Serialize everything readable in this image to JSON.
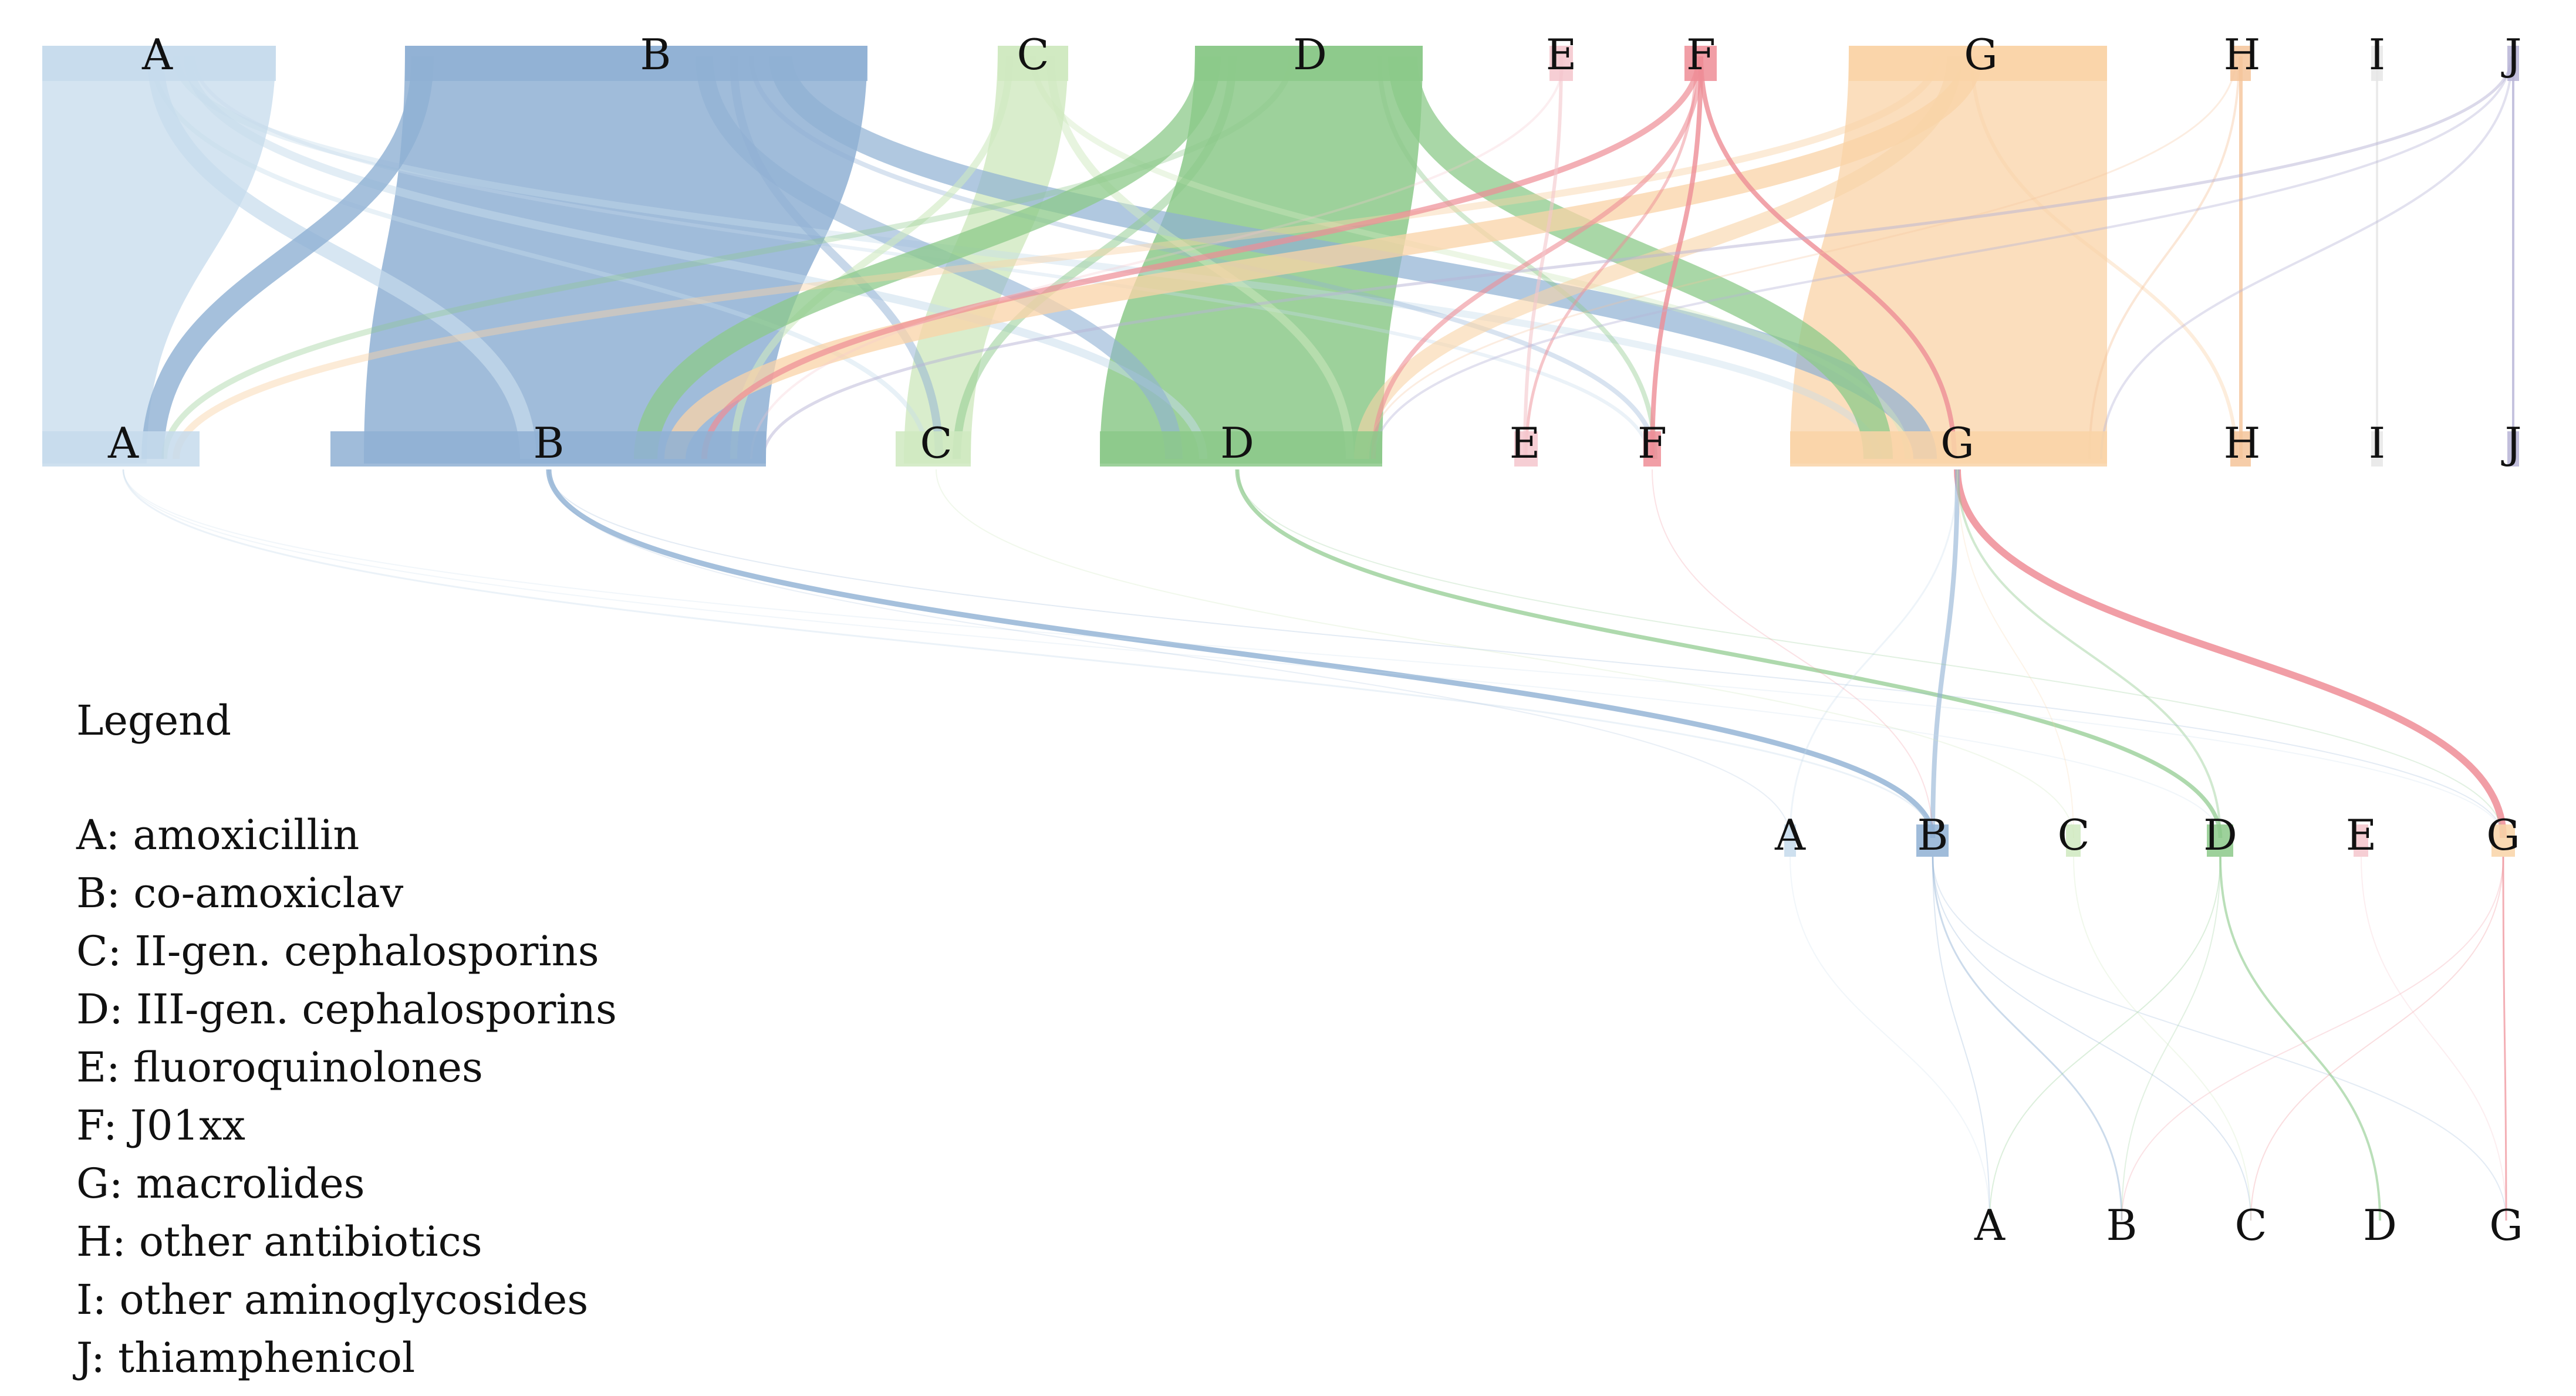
{
  "colors": {
    "A": "#c6dbec",
    "B": "#8fb0d3",
    "C": "#cfe9bf",
    "D": "#8cc98a",
    "E": "#f4c6cc",
    "F": "#ee8d96",
    "G": "#f9d3a7",
    "H": "#f5c49a",
    "I": "#e6e6e6",
    "J": "#b7b4d6"
  },
  "levels": [
    {
      "name": "level-1",
      "nodes": [
        "A",
        "B",
        "C",
        "D",
        "E",
        "F",
        "G",
        "H",
        "I",
        "J"
      ]
    },
    {
      "name": "level-2",
      "nodes": [
        "A",
        "B",
        "C",
        "D",
        "E",
        "F",
        "G",
        "H",
        "I",
        "J"
      ]
    },
    {
      "name": "level-3",
      "nodes": [
        "A",
        "B",
        "C",
        "D",
        "E",
        "G"
      ]
    },
    {
      "name": "level-4",
      "nodes": [
        "A",
        "B",
        "C",
        "D",
        "G"
      ]
    }
  ],
  "legend": {
    "title": "Legend",
    "items": [
      "A: amoxicillin",
      "B: co-amoxiclav",
      "C: II-gen. cephalosporins",
      "D: III-gen. cephalosporins",
      "E: fluoroquinolones",
      "F: J01xx",
      "G: macrolides",
      "H: other antibiotics",
      "I: other aminoglycosides",
      "J: thiamphenicol"
    ]
  }
}
